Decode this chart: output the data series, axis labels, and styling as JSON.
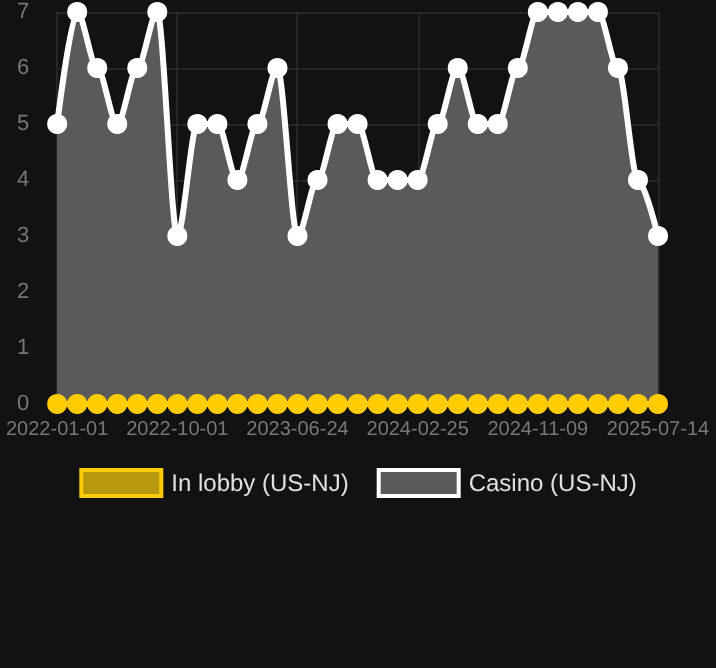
{
  "chart_data": {
    "type": "line",
    "categories": [
      "2022-01-01",
      null,
      null,
      null,
      null,
      null,
      "2022-10-01",
      null,
      null,
      null,
      null,
      null,
      "2023-06-24",
      null,
      null,
      null,
      null,
      null,
      "2024-02-25",
      null,
      null,
      null,
      null,
      null,
      "2024-11-09",
      null,
      null,
      null,
      null,
      null,
      "2025-07-14"
    ],
    "series": [
      {
        "name": "In lobby (US-NJ)",
        "color": "#ffcc00",
        "values": [
          0,
          0,
          0,
          0,
          0,
          0,
          0,
          0,
          0,
          0,
          0,
          0,
          0,
          0,
          0,
          0,
          0,
          0,
          0,
          0,
          0,
          0,
          0,
          0,
          0,
          0,
          0,
          0,
          0,
          0,
          0
        ]
      },
      {
        "name": "Casino (US-NJ)",
        "type": "area",
        "color": "#ffffff",
        "values": [
          5,
          7,
          6,
          5,
          6,
          7,
          3,
          5,
          5,
          4,
          5,
          6,
          3,
          4,
          5,
          5,
          4,
          4,
          4,
          5,
          6,
          5,
          5,
          6,
          7,
          7,
          7,
          7,
          6,
          4,
          3
        ]
      }
    ],
    "ylim": [
      0,
      7
    ],
    "yticks": [
      0,
      1,
      2,
      3,
      4,
      5,
      6,
      7
    ],
    "grid": true,
    "legend": "bottom",
    "marker": "circle"
  }
}
